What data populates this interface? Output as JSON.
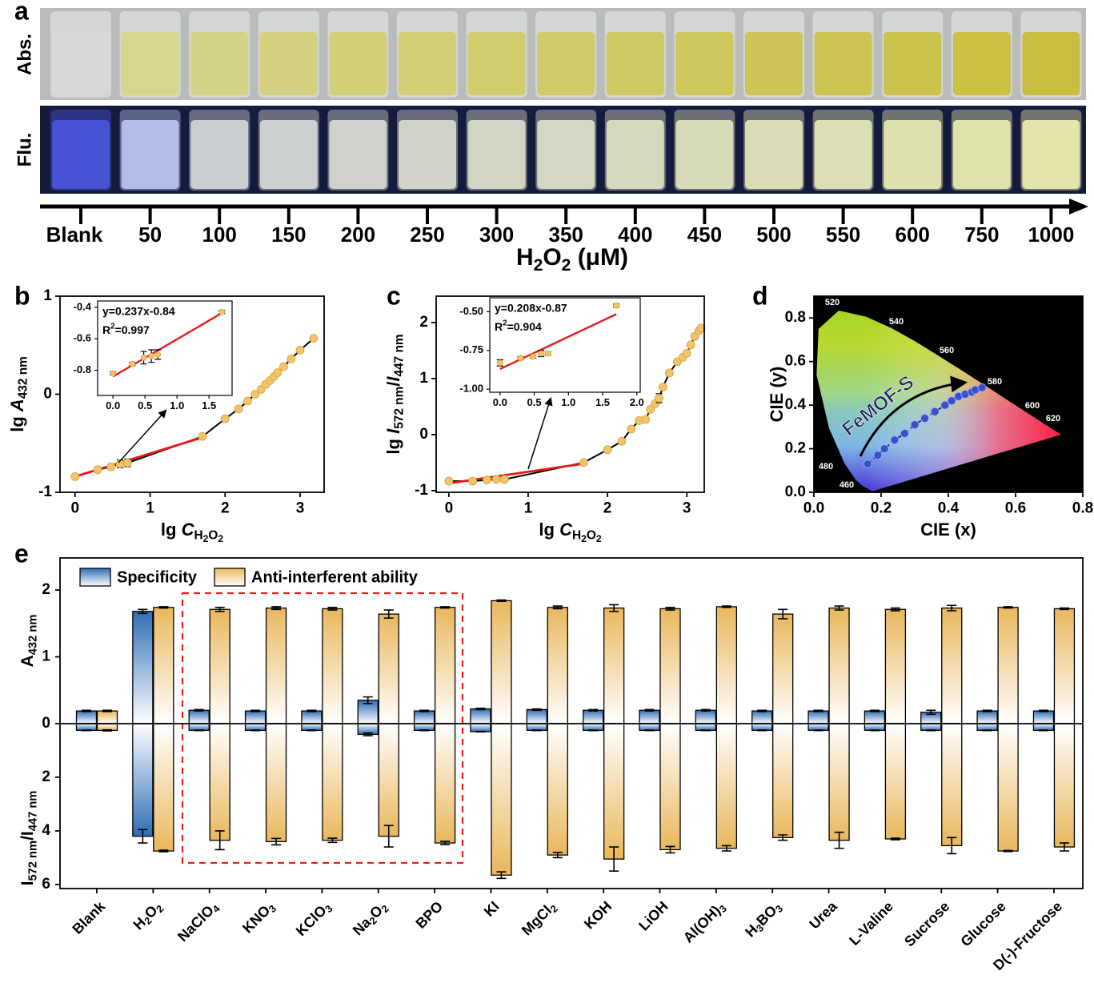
{
  "panel_labels": [
    "a",
    "b",
    "c",
    "d",
    "e"
  ],
  "panel_a": {
    "row_labels": [
      "Abs.",
      "Flu."
    ],
    "concentrations": [
      "Blank",
      50,
      100,
      150,
      200,
      250,
      300,
      350,
      400,
      450,
      500,
      550,
      600,
      750,
      1000
    ],
    "axis_label": [
      "H",
      "2",
      "O",
      "2",
      " (μM)"
    ]
  },
  "chart_data": [
    {
      "type": "scatter",
      "x_label": [
        "lg ",
        "C",
        "H",
        "2",
        "O",
        "2"
      ],
      "y_label": [
        "lg ",
        "A",
        "432 nm"
      ],
      "xlim": [
        -0.2,
        3.32
      ],
      "xticks": [
        0,
        1,
        2,
        3
      ],
      "ylim": [
        -1,
        1
      ],
      "yticks": [
        -1,
        0,
        1
      ],
      "line_color": "#000000",
      "x": [
        0,
        0.3,
        0.48,
        0.6,
        0.7,
        1.7,
        2,
        2.18,
        2.3,
        2.4,
        2.48,
        2.54,
        2.6,
        2.65,
        2.7,
        2.78,
        2.88,
        3,
        3.18
      ],
      "series": [
        {
          "color": "#f2c46a",
          "values": [
            -0.84,
            -0.77,
            -0.74,
            -0.71,
            -0.7,
            -0.43,
            -0.25,
            -0.15,
            -0.07,
            0,
            0.05,
            0.1,
            0.14,
            0.18,
            0.22,
            0.28,
            0.36,
            0.45,
            0.57
          ],
          "errors": [
            0.01,
            0.01,
            0.03,
            0.04,
            0.04,
            0.02,
            0.01,
            0.01,
            0.01,
            0.01,
            0.01,
            0.01,
            0.01,
            0.01,
            0.01,
            0.01,
            0.01,
            0.01,
            0.01
          ]
        }
      ],
      "fit": {
        "color": "#e31a1c",
        "x": [
          0,
          1.7
        ],
        "values": [
          -0.84,
          -0.44
        ]
      },
      "inset": {
        "type": "scatter",
        "xlim": [
          -0.24,
          1.86
        ],
        "xticks": [
          {
            "value": 0,
            "label": "0.0"
          },
          {
            "value": 0.5,
            "label": "0.5"
          },
          {
            "value": 1,
            "label": "1.0"
          },
          {
            "value": 1.5,
            "label": "1.5"
          }
        ],
        "ylim": [
          -0.96,
          -0.36
        ],
        "yticks": [
          -0.8,
          -0.6,
          -0.4
        ],
        "x": [
          0,
          0.3,
          0.48,
          0.6,
          0.7,
          1.7
        ],
        "series": [
          {
            "color": "#f2c46a",
            "values": [
              -0.82,
              -0.76,
              -0.72,
              -0.71,
              -0.7,
              -0.43
            ],
            "errors": [
              0.01,
              0.01,
              0.04,
              0.04,
              0.03,
              0.01
            ]
          }
        ],
        "fit": {
          "color": "#e31a1c",
          "x": [
            0,
            1.7
          ],
          "values": [
            -0.84,
            -0.437
          ]
        },
        "equation": "y=0.237x-0.84",
        "r_squared": [
          "R",
          "2",
          "=0.997"
        ]
      }
    },
    {
      "type": "scatter",
      "x_label": [
        "lg ",
        "C",
        "H",
        "2",
        "O",
        "2"
      ],
      "y_label": [
        "lg ",
        "I",
        "572 nm",
        "/",
        "I",
        "447 nm"
      ],
      "xlim": [
        -0.16,
        3.22
      ],
      "xticks": [
        0,
        1,
        2,
        3
      ],
      "ylim": [
        -1.03,
        2.47
      ],
      "yticks": [
        -1,
        0,
        1,
        2
      ],
      "line_color": "#000000",
      "x": [
        0,
        0.3,
        0.48,
        0.6,
        0.7,
        1.7,
        2,
        2.18,
        2.3,
        2.4,
        2.48,
        2.54,
        2.6,
        2.65,
        2.7,
        2.78,
        2.88,
        2.95,
        3,
        3.05,
        3.1,
        3.15,
        3.18
      ],
      "series": [
        {
          "color": "#f2c46a",
          "values": [
            -0.83,
            -0.83,
            -0.81,
            -0.8,
            -0.8,
            -0.5,
            -0.27,
            -0.12,
            0.1,
            0.25,
            0.27,
            0.45,
            0.55,
            0.65,
            0.85,
            1.1,
            1.3,
            1.38,
            1.45,
            1.6,
            1.75,
            1.85,
            1.9
          ],
          "errors": [
            0.02,
            0.02,
            0.02,
            0.02,
            0.02,
            0.02,
            0.02,
            0.02,
            0.02,
            0.02,
            0.02,
            0.02,
            0.02,
            0.08,
            0.02,
            0.05,
            0.02,
            0.02,
            0.02,
            0.02,
            0.05,
            0.02,
            0.02
          ]
        }
      ],
      "fit": {
        "color": "#e31a1c",
        "x": [
          0,
          1.7
        ],
        "values": [
          -0.87,
          -0.52
        ]
      },
      "inset": {
        "type": "scatter",
        "xlim": [
          -0.15,
          2.05
        ],
        "xticks": [
          {
            "value": 0,
            "label": "0.0"
          },
          {
            "value": 0.5,
            "label": "0.5"
          },
          {
            "value": 1,
            "label": "1.0"
          },
          {
            "value": 1.5,
            "label": "1.5"
          },
          {
            "value": 2,
            "label": "2.0"
          }
        ],
        "ylim": [
          -1.02,
          -0.41
        ],
        "yticks": [
          {
            "value": -1,
            "label": "-1.00"
          },
          {
            "value": -0.75,
            "label": "-0.75"
          },
          {
            "value": -0.5,
            "label": "-0.50"
          }
        ],
        "x": [
          0,
          0.3,
          0.48,
          0.6,
          0.7,
          1.7
        ],
        "series": [
          {
            "color": "#f2c46a",
            "values": [
              -0.83,
              -0.8,
              -0.79,
              -0.77,
              -0.77,
              -0.46
            ],
            "errors": [
              0.02,
              0.01,
              0.01,
              0.02,
              0.01,
              0.01
            ]
          }
        ],
        "fit": {
          "color": "#e31a1c",
          "x": [
            0,
            1.7
          ],
          "values": [
            -0.87,
            -0.516
          ]
        },
        "equation": "y=0.208x-0.87",
        "r_squared": [
          "R",
          "2",
          "=0.904"
        ]
      }
    },
    {
      "type": "scatter",
      "x_label": "CIE (x)",
      "y_label": "CIE (y)",
      "xlim": [
        0,
        0.8
      ],
      "xticks": [
        {
          "value": 0,
          "label": "0.0"
        },
        {
          "value": 0.2,
          "label": "0.2"
        },
        {
          "value": 0.4,
          "label": "0.4"
        },
        {
          "value": 0.6,
          "label": "0.6"
        },
        {
          "value": 0.8,
          "label": "0.8"
        }
      ],
      "ylim": [
        0,
        0.9
      ],
      "yticks": [
        {
          "value": 0,
          "label": "0.0"
        },
        {
          "value": 0.2,
          "label": "0.2"
        },
        {
          "value": 0.4,
          "label": "0.4"
        },
        {
          "value": 0.6,
          "label": "0.6"
        },
        {
          "value": 0.8,
          "label": "0.8"
        }
      ],
      "background": "#000000",
      "line_color": "#1a2a6c",
      "dashed": true,
      "x": [
        0.16,
        0.19,
        0.21,
        0.24,
        0.27,
        0.3,
        0.33,
        0.36,
        0.39,
        0.41,
        0.43,
        0.45,
        0.47,
        0.48,
        0.5
      ],
      "series": [
        {
          "color": "#3c4fc8",
          "values": [
            0.13,
            0.17,
            0.2,
            0.24,
            0.27,
            0.31,
            0.34,
            0.37,
            0.4,
            0.42,
            0.44,
            0.45,
            0.46,
            0.47,
            0.48
          ]
        }
      ],
      "annotation": "FeMOF-S",
      "wavelength_labels": [
        460,
        480,
        520,
        540,
        560,
        580,
        600,
        620
      ]
    },
    {
      "type": "bar",
      "y_label": [
        "A",
        "432 nm"
      ],
      "y2_label": [
        "I",
        "572 nm",
        "/I",
        "447 nm"
      ],
      "categories": [
        "Blank",
        [
          "H",
          "2",
          "O",
          "2"
        ],
        [
          "NaClO",
          "4"
        ],
        [
          "KNO",
          "3"
        ],
        [
          "KClO",
          "3"
        ],
        [
          "Na",
          "2",
          "O",
          "2"
        ],
        "BPO",
        "KI",
        [
          "MgCl",
          "2"
        ],
        "KOH",
        "LiOH",
        [
          "Al(OH)",
          "3"
        ],
        [
          "H",
          "3",
          "BO",
          "3"
        ],
        "Urea",
        "L-Valine",
        "Sucrose",
        "Glucose",
        "D(-)-Fructose"
      ],
      "ylim": [
        0,
        2.48
      ],
      "yticks": [
        0,
        1,
        2
      ],
      "y2lim": [
        0,
        6.15
      ],
      "y2ticks": [
        2,
        4,
        6
      ],
      "y2_inverted": true,
      "legend": "top-left",
      "series": [
        {
          "name": "Specificity",
          "color": "#2f6db5",
          "values": [
            0.19,
            1.68,
            0.2,
            0.19,
            0.19,
            0.35,
            0.19,
            0.22,
            0.21,
            0.2,
            0.2,
            0.2,
            0.19,
            0.19,
            0.19,
            0.17,
            0.19,
            0.19
          ],
          "errors": [
            0.01,
            0.03,
            0.01,
            0.01,
            0.01,
            0.05,
            0.01,
            0.01,
            0.01,
            0.01,
            0.01,
            0.01,
            0.01,
            0.01,
            0.01,
            0.03,
            0.01,
            0.01
          ],
          "y2_values": [
            0.25,
            4.2,
            0.25,
            0.25,
            0.25,
            0.4,
            0.25,
            0.3,
            0.25,
            0.25,
            0.25,
            0.25,
            0.25,
            0.25,
            0.25,
            0.25,
            0.25,
            0.25
          ],
          "y2_errors": [
            0.01,
            0.25,
            0.01,
            0.01,
            0.01,
            0.05,
            0.01,
            0.01,
            0.01,
            0.01,
            0.01,
            0.01,
            0.01,
            0.01,
            0.01,
            0.01,
            0.01,
            0.01
          ]
        },
        {
          "name": "Anti-interferent ability",
          "color": "#e9b75c",
          "values": [
            0.19,
            1.74,
            1.71,
            1.73,
            1.72,
            1.64,
            1.74,
            1.84,
            1.74,
            1.73,
            1.72,
            1.75,
            1.64,
            1.73,
            1.71,
            1.73,
            1.74,
            1.72
          ],
          "errors": [
            0.01,
            0.01,
            0.03,
            0.02,
            0.02,
            0.06,
            0.01,
            0.01,
            0.02,
            0.05,
            0.02,
            0.01,
            0.07,
            0.03,
            0.02,
            0.04,
            0.01,
            0.01
          ],
          "y2_values": [
            0.25,
            4.75,
            4.35,
            4.4,
            4.35,
            4.2,
            4.45,
            5.65,
            4.9,
            5.05,
            4.7,
            4.65,
            4.25,
            4.35,
            4.3,
            4.55,
            4.75,
            4.6
          ],
          "y2_errors": [
            0.02,
            0.03,
            0.35,
            0.12,
            0.08,
            0.4,
            0.06,
            0.12,
            0.1,
            0.45,
            0.12,
            0.1,
            0.1,
            0.3,
            0.03,
            0.3,
            0.02,
            0.15
          ]
        }
      ]
    }
  ]
}
